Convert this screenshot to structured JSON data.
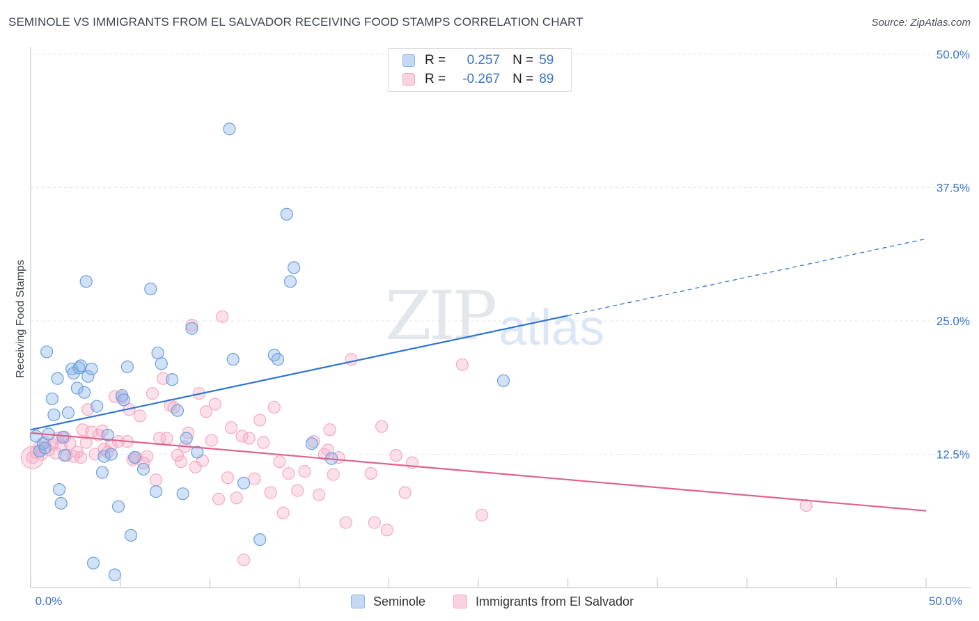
{
  "title": "SEMINOLE VS IMMIGRANTS FROM EL SALVADOR RECEIVING FOOD STAMPS CORRELATION CHART",
  "source": "Source: ZipAtlas.com",
  "watermark": {
    "zip": "ZIP",
    "atlas": "atlas"
  },
  "legend": {
    "r_label": "R =",
    "n_label": "N =",
    "rows": [
      {
        "r": "0.257",
        "n": "59"
      },
      {
        "r": "-0.267",
        "n": "89"
      }
    ]
  },
  "chart_data": {
    "type": "scatter",
    "title": "SEMINOLE VS IMMIGRANTS FROM EL SALVADOR RECEIVING FOOD STAMPS CORRELATION CHART",
    "xlabel": "",
    "ylabel": "Receiving Food Stamps",
    "xlim": [
      0,
      50
    ],
    "ylim": [
      0,
      50
    ],
    "x_tick_labels": [
      "0.0%",
      "50.0%"
    ],
    "y_ticks": [
      12.5,
      25.0,
      37.5,
      50.0
    ],
    "y_tick_labels": [
      "12.5%",
      "25.0%",
      "37.5%",
      "50.0%"
    ],
    "grid": true,
    "colors": {
      "seminole": "#8cb4e8",
      "salvador": "#f5a9c2",
      "seminole_line": "#2e74d0",
      "salvador_line": "#e0628e",
      "tick_text": "#3a74c6"
    },
    "series": [
      {
        "name": "Seminole",
        "r": 0.257,
        "n": 59,
        "trend": {
          "x0": 0,
          "y0": 14.8,
          "x1": 30,
          "y1": 25.5,
          "dash_to_x": 50,
          "dash_to_y": 32.7
        },
        "points": [
          [
            0.3,
            14.2
          ],
          [
            0.5,
            12.8
          ],
          [
            0.7,
            13.5
          ],
          [
            0.8,
            13.1
          ],
          [
            0.9,
            22.1
          ],
          [
            1.0,
            14.4
          ],
          [
            1.2,
            17.7
          ],
          [
            1.3,
            16.2
          ],
          [
            1.5,
            19.6
          ],
          [
            1.6,
            9.2
          ],
          [
            1.7,
            7.9
          ],
          [
            1.8,
            14.1
          ],
          [
            1.9,
            12.4
          ],
          [
            2.1,
            16.4
          ],
          [
            2.3,
            20.5
          ],
          [
            2.4,
            20.1
          ],
          [
            2.6,
            18.7
          ],
          [
            2.7,
            20.6
          ],
          [
            2.8,
            20.8
          ],
          [
            3.0,
            18.3
          ],
          [
            3.1,
            28.7
          ],
          [
            3.2,
            19.8
          ],
          [
            3.4,
            20.5
          ],
          [
            3.5,
            2.3
          ],
          [
            3.7,
            17.0
          ],
          [
            4.0,
            10.8
          ],
          [
            4.1,
            12.3
          ],
          [
            4.3,
            14.3
          ],
          [
            4.5,
            12.5
          ],
          [
            4.7,
            1.2
          ],
          [
            4.9,
            7.6
          ],
          [
            5.1,
            18.0
          ],
          [
            5.2,
            17.6
          ],
          [
            5.4,
            20.7
          ],
          [
            5.6,
            4.9
          ],
          [
            5.8,
            12.2
          ],
          [
            6.3,
            11.1
          ],
          [
            6.7,
            28.0
          ],
          [
            7.0,
            9.0
          ],
          [
            7.1,
            22.0
          ],
          [
            7.3,
            21.0
          ],
          [
            7.9,
            19.5
          ],
          [
            8.2,
            16.6
          ],
          [
            8.5,
            8.8
          ],
          [
            8.7,
            14.0
          ],
          [
            9.0,
            24.3
          ],
          [
            9.3,
            12.7
          ],
          [
            11.1,
            43.0
          ],
          [
            11.3,
            21.4
          ],
          [
            11.9,
            9.8
          ],
          [
            12.8,
            4.5
          ],
          [
            13.6,
            21.8
          ],
          [
            13.8,
            21.4
          ],
          [
            14.3,
            35.0
          ],
          [
            14.5,
            28.7
          ],
          [
            14.7,
            30.0
          ],
          [
            15.7,
            13.5
          ],
          [
            16.8,
            12.1
          ],
          [
            26.4,
            19.4
          ]
        ]
      },
      {
        "name": "Immigrants from El Salvador",
        "r": -0.267,
        "n": 89,
        "trend": {
          "x0": 0,
          "y0": 14.5,
          "x1": 50,
          "y1": 7.2
        },
        "points": [
          [
            0.1,
            12.2
          ],
          [
            0.3,
            12.7
          ],
          [
            0.5,
            13.2
          ],
          [
            0.6,
            12.5
          ],
          [
            0.8,
            13.6
          ],
          [
            1.0,
            12.9
          ],
          [
            1.2,
            13.4
          ],
          [
            1.4,
            12.6
          ],
          [
            1.5,
            14.0
          ],
          [
            1.7,
            13.3
          ],
          [
            1.9,
            14.1
          ],
          [
            2.0,
            12.4
          ],
          [
            2.2,
            13.5
          ],
          [
            2.4,
            12.3
          ],
          [
            2.6,
            12.7
          ],
          [
            2.8,
            12.2
          ],
          [
            2.9,
            14.8
          ],
          [
            3.1,
            13.6
          ],
          [
            3.2,
            16.7
          ],
          [
            3.4,
            14.6
          ],
          [
            3.6,
            12.5
          ],
          [
            3.8,
            14.3
          ],
          [
            4.0,
            14.7
          ],
          [
            4.1,
            13.0
          ],
          [
            4.3,
            12.7
          ],
          [
            4.5,
            13.3
          ],
          [
            4.7,
            17.9
          ],
          [
            4.9,
            13.7
          ],
          [
            5.1,
            17.8
          ],
          [
            5.4,
            13.7
          ],
          [
            5.5,
            16.7
          ],
          [
            5.7,
            12.0
          ],
          [
            5.9,
            12.2
          ],
          [
            6.1,
            16.1
          ],
          [
            6.3,
            11.7
          ],
          [
            6.5,
            12.3
          ],
          [
            6.8,
            18.2
          ],
          [
            7.0,
            10.1
          ],
          [
            7.2,
            14.0
          ],
          [
            7.4,
            19.6
          ],
          [
            7.6,
            14.0
          ],
          [
            7.8,
            17.1
          ],
          [
            8.0,
            16.9
          ],
          [
            8.2,
            12.4
          ],
          [
            8.4,
            11.8
          ],
          [
            8.6,
            13.2
          ],
          [
            8.8,
            14.5
          ],
          [
            9.0,
            24.6
          ],
          [
            9.2,
            11.3
          ],
          [
            9.4,
            18.2
          ],
          [
            9.6,
            11.9
          ],
          [
            9.8,
            16.5
          ],
          [
            10.1,
            13.8
          ],
          [
            10.3,
            17.2
          ],
          [
            10.5,
            8.3
          ],
          [
            10.7,
            25.4
          ],
          [
            11.0,
            10.3
          ],
          [
            11.2,
            15.0
          ],
          [
            11.5,
            8.4
          ],
          [
            11.8,
            14.2
          ],
          [
            11.9,
            2.6
          ],
          [
            12.2,
            14.0
          ],
          [
            12.5,
            10.2
          ],
          [
            12.8,
            15.7
          ],
          [
            13.0,
            13.6
          ],
          [
            13.4,
            8.9
          ],
          [
            13.6,
            16.9
          ],
          [
            13.9,
            11.8
          ],
          [
            14.1,
            7.0
          ],
          [
            14.4,
            10.7
          ],
          [
            14.9,
            9.1
          ],
          [
            15.3,
            10.9
          ],
          [
            15.8,
            13.7
          ],
          [
            16.1,
            8.7
          ],
          [
            16.4,
            12.5
          ],
          [
            16.7,
            14.8
          ],
          [
            16.9,
            10.6
          ],
          [
            17.2,
            12.2
          ],
          [
            17.6,
            6.1
          ],
          [
            17.9,
            21.4
          ],
          [
            19.0,
            10.7
          ],
          [
            19.2,
            6.1
          ],
          [
            19.6,
            15.1
          ],
          [
            19.9,
            5.4
          ],
          [
            20.4,
            12.4
          ],
          [
            20.9,
            8.9
          ],
          [
            21.3,
            11.7
          ],
          [
            24.1,
            20.9
          ],
          [
            25.2,
            6.8
          ]
        ],
        "outliers_note": "",
        "extra_points": [
          [
            43.3,
            7.7
          ],
          [
            16.6,
            12.9
          ]
        ]
      }
    ]
  }
}
